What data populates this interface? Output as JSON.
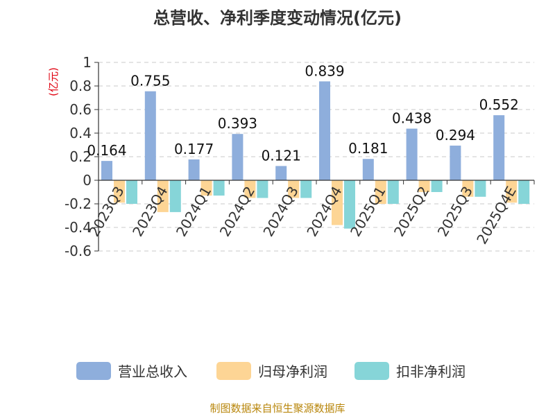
{
  "chart_data": {
    "type": "bar",
    "title": "总营收、净利季度变动情况(亿元)",
    "unit_label": "(亿元)",
    "categories": [
      "2023Q3",
      "2023Q4",
      "2024Q1",
      "2024Q2",
      "2024Q3",
      "2024Q4",
      "2025Q1",
      "2025Q2",
      "2025Q3",
      "2025Q4E"
    ],
    "series": [
      {
        "name": "营业总收入",
        "color": "#8eaedc",
        "values": [
          0.164,
          0.755,
          0.177,
          0.393,
          0.121,
          0.839,
          0.181,
          0.438,
          0.294,
          0.552
        ],
        "data_labels": [
          "0.164",
          "0.755",
          "0.177",
          "0.393",
          "0.121",
          "0.839",
          "0.181",
          "0.438",
          "0.294",
          "0.552"
        ]
      },
      {
        "name": "归母净利润",
        "color": "#fdd595",
        "values": [
          -0.19,
          -0.27,
          -0.13,
          -0.15,
          -0.15,
          -0.38,
          -0.2,
          -0.1,
          -0.14,
          -0.19
        ]
      },
      {
        "name": "扣非净利润",
        "color": "#86d5d8",
        "values": [
          -0.2,
          -0.27,
          -0.13,
          -0.15,
          -0.15,
          -0.41,
          -0.2,
          -0.1,
          -0.14,
          -0.2
        ]
      }
    ],
    "yticks": [
      "1",
      "0.8",
      "0.6",
      "0.4",
      "0.2",
      "0",
      "-0.2",
      "-0.4",
      "-0.6"
    ],
    "ylim": [
      -0.6,
      1
    ],
    "grid": true,
    "legend_position": "bottom"
  },
  "source": "制图数据来自恒生聚源数据库"
}
